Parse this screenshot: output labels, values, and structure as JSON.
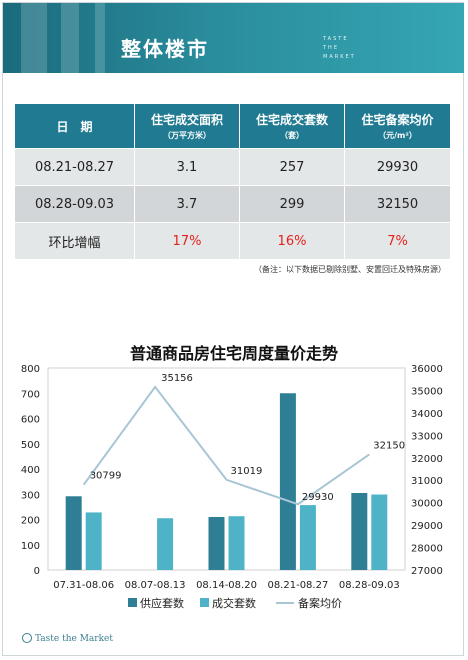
{
  "header": {
    "title": "整体楼市",
    "brand_lines": [
      "TASTE",
      "THE",
      "MARKET"
    ]
  },
  "table": {
    "headers": [
      {
        "label": "日　期",
        "unit": ""
      },
      {
        "label": "住宅成交面积",
        "unit": "（万平方米）"
      },
      {
        "label": "住宅成交套数",
        "unit": "（套）"
      },
      {
        "label": "住宅备案均价",
        "unit": "（元/m²）"
      }
    ],
    "rows": [
      [
        "08.21-08.27",
        "3.1",
        "257",
        "29930"
      ],
      [
        "08.28-09.03",
        "3.7",
        "299",
        "32150"
      ],
      [
        "环比增幅",
        "17%",
        "16%",
        "7%"
      ]
    ]
  },
  "note": "（备注：以下数据已剔除别墅、安置回迁及特殊房源）",
  "chart_data": {
    "type": "bar",
    "title": "普通商品房住宅周度量价走势",
    "categories": [
      "07.31-08.06",
      "08.07-08.13",
      "08.14-08.20",
      "08.21-08.27",
      "08.28-09.03"
    ],
    "series": [
      {
        "name": "供应套数",
        "type": "bar",
        "axis": "left",
        "color": "#2e7f96",
        "values": [
          292,
          0,
          210,
          700,
          305
        ]
      },
      {
        "name": "成交套数",
        "type": "bar",
        "axis": "left",
        "color": "#4fb3c8",
        "values": [
          228,
          205,
          213,
          257,
          299
        ]
      },
      {
        "name": "备案均价",
        "type": "line",
        "axis": "right",
        "color": "#a8c6d4",
        "values": [
          30799,
          35156,
          31019,
          29930,
          32150
        ]
      }
    ],
    "left_axis": {
      "min": 0,
      "max": 800,
      "step": 100
    },
    "right_axis": {
      "min": 27000,
      "max": 36000,
      "step": 1000
    },
    "legend_position": "bottom",
    "line_labels": [
      "30799",
      "35156",
      "31019",
      "29930",
      "32150"
    ]
  },
  "footer": {
    "logo_text": "Taste the Market"
  }
}
